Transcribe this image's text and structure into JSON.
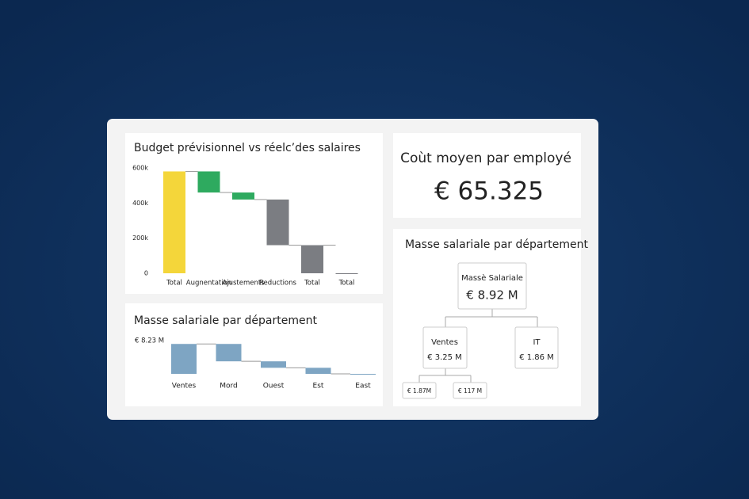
{
  "chart_data": [
    {
      "type": "waterfall",
      "title": "Budget prévisionnel vs réelc’des salaires",
      "categories": [
        "Total",
        "Augnentation",
        "Ajustements",
        "Reductions",
        "Total",
        "Total"
      ],
      "values": [
        580000,
        -120000,
        -40000,
        -260000,
        160000,
        0
      ],
      "kinds": [
        "total",
        "delta",
        "delta",
        "delta",
        "total",
        "total"
      ],
      "colors": [
        "#f4d63a",
        "#2eaa5f",
        "#2eaa5f",
        "#7b7d82",
        "#7b7d82",
        "#7b7d82"
      ],
      "ylim": [
        0,
        600000
      ],
      "yticks": [
        0,
        {
          "value": 200000,
          "label": "200k"
        },
        {
          "value": 400000,
          "label": "400k"
        },
        {
          "value": 600000,
          "label": "600k"
        }
      ]
    },
    {
      "type": "waterfall",
      "title": "Masse salariale par département",
      "categories": [
        "Ventes",
        "Mord",
        "Ouest",
        "Est",
        "East"
      ],
      "values": [
        7.4,
        -4.3,
        -1.6,
        -1.5,
        0
      ],
      "kinds": [
        "total",
        "delta",
        "delta",
        "delta",
        "total"
      ],
      "color": "#7ea5c3",
      "ylim": [
        0,
        8.23
      ],
      "yticks": [
        {
          "value": 8.23,
          "label": "€ 8.23 M"
        }
      ]
    }
  ],
  "kpi": {
    "title": "Coùt moyen par employé",
    "value": "€ 65.325"
  },
  "tree": {
    "title": "Masse salariale par département",
    "root": {
      "label": "Massè Salariale",
      "value": "€ 8.92 M"
    },
    "children": [
      {
        "label": "Ventes",
        "value": "€ 3.25 M"
      },
      {
        "label": "IT",
        "value": "€ 1.86 M"
      }
    ],
    "leaves": [
      "€ 1.87M",
      "€ 117 M"
    ]
  }
}
